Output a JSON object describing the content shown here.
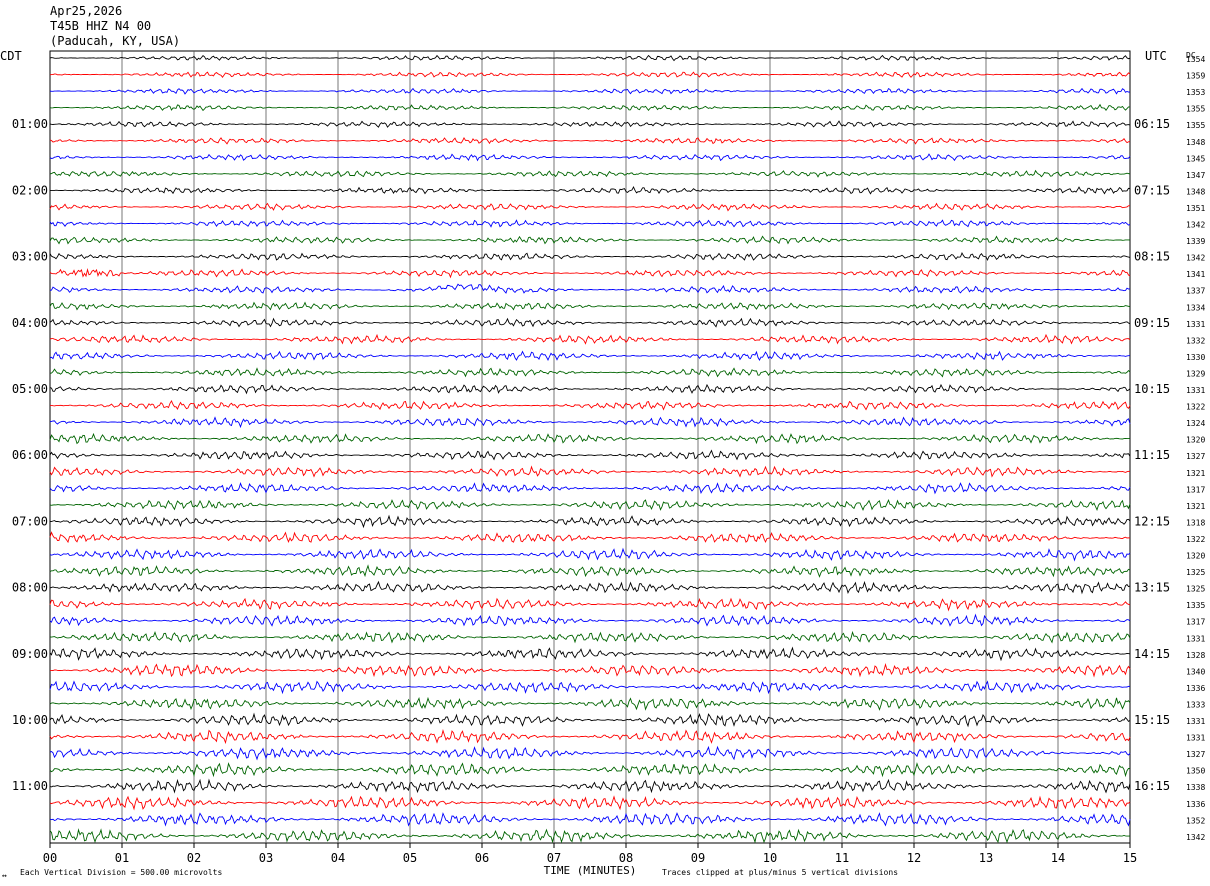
{
  "header": {
    "date": "Apr25,2026",
    "station": "T45B HHZ N4 00",
    "location": "(Paducah, KY, USA)"
  },
  "left_tz": "CDT",
  "right_tz": "UTC",
  "dc_label": "DC",
  "footer": {
    "scale_note": "Each Vertical Division =  500.00 microvolts",
    "clip_note": "Traces clipped at plus/minus 5 vertical divisions",
    "mark": "↔"
  },
  "colors": [
    "#000000",
    "#ff0000",
    "#0000ff",
    "#006400"
  ],
  "chart_data": {
    "type": "line",
    "xlabel": "TIME (MINUTES)",
    "x_ticks": [
      "00",
      "01",
      "02",
      "03",
      "04",
      "05",
      "06",
      "07",
      "08",
      "09",
      "10",
      "11",
      "12",
      "13",
      "14",
      "15"
    ],
    "xlim": [
      0,
      15
    ],
    "traces_per_hour": 4,
    "left_hour_labels": [
      "01:00",
      "02:00",
      "03:00",
      "04:00",
      "05:00",
      "06:00",
      "07:00",
      "08:00",
      "09:00",
      "10:00",
      "11:00"
    ],
    "right_hour_labels": [
      "06:15",
      "07:15",
      "08:15",
      "09:15",
      "10:15",
      "11:15",
      "12:15",
      "13:15",
      "14:15",
      "15:15",
      "16:15"
    ],
    "first_labeled_trace": 4,
    "dc_values": [
      "1354",
      "1359",
      "1353",
      "1355",
      "1355",
      "1348",
      "1345",
      "1347",
      "1348",
      "1351",
      "1342",
      "1339",
      "1342",
      "1341",
      "1337",
      "1334",
      "1331",
      "1332",
      "1330",
      "1329",
      "1331",
      "1322",
      "1324",
      "1320",
      "1327",
      "1321",
      "1317",
      "1321",
      "1318",
      "1322",
      "1320",
      "1325",
      "1325",
      "1335",
      "1317",
      "1331",
      "1328",
      "1340",
      "1336",
      "1333",
      "1331",
      "1331",
      "1327",
      "1350",
      "1338",
      "1336",
      "1352",
      "1342"
    ]
  }
}
